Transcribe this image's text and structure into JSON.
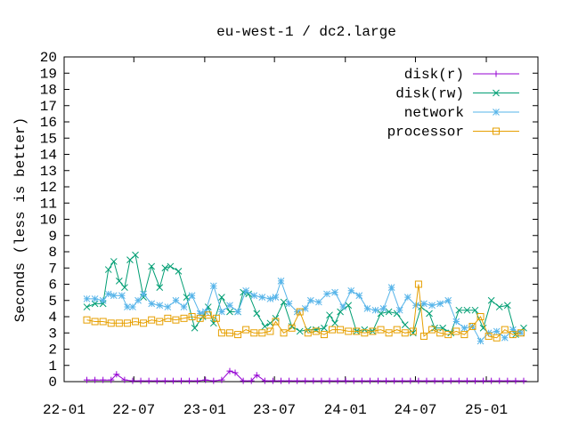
{
  "chart_data": {
    "type": "line",
    "title": "eu-west-1 / dc2.large",
    "ylabel": "Seconds (less is better)",
    "xlabel": "",
    "x_axis_type": "date",
    "ylim": [
      0,
      20
    ],
    "y_ticks": [
      "0",
      "1",
      "2",
      "3",
      "4",
      "5",
      "6",
      "7",
      "8",
      "9",
      "10",
      "11",
      "12",
      "13",
      "14",
      "15",
      "16",
      "17",
      "18",
      "19",
      "20"
    ],
    "x_ticks": [
      {
        "label": "22-01",
        "date": "2022-01-01"
      },
      {
        "label": "22-07",
        "date": "2022-07-01"
      },
      {
        "label": "23-01",
        "date": "2023-01-01"
      },
      {
        "label": "23-07",
        "date": "2023-07-01"
      },
      {
        "label": "24-01",
        "date": "2024-01-01"
      },
      {
        "label": "24-07",
        "date": "2024-07-01"
      },
      {
        "label": "25-01",
        "date": "2025-01-01"
      }
    ],
    "xlim": [
      "2022-01-01",
      "2025-05-15"
    ],
    "grid": false,
    "legend_position": "top-right",
    "series": [
      {
        "name": "disk(r)",
        "color": "#9400d3",
        "marker": "plus",
        "points": [
          [
            "2022-03-01",
            0.1
          ],
          [
            "2022-03-22",
            0.1
          ],
          [
            "2022-04-12",
            0.1
          ],
          [
            "2022-05-03",
            0.1
          ],
          [
            "2022-05-17",
            0.45
          ],
          [
            "2022-06-07",
            0.1
          ],
          [
            "2022-06-28",
            0.05
          ],
          [
            "2022-07-19",
            0.05
          ],
          [
            "2022-08-09",
            0.05
          ],
          [
            "2022-08-30",
            0.05
          ],
          [
            "2022-09-20",
            0.05
          ],
          [
            "2022-10-11",
            0.05
          ],
          [
            "2022-11-01",
            0.05
          ],
          [
            "2022-11-22",
            0.05
          ],
          [
            "2022-12-13",
            0.05
          ],
          [
            "2023-01-03",
            0.1
          ],
          [
            "2023-01-24",
            0.05
          ],
          [
            "2023-02-14",
            0.1
          ],
          [
            "2023-03-07",
            0.65
          ],
          [
            "2023-03-21",
            0.55
          ],
          [
            "2023-04-11",
            0.05
          ],
          [
            "2023-05-02",
            0.05
          ],
          [
            "2023-05-16",
            0.4
          ],
          [
            "2023-06-06",
            0.05
          ],
          [
            "2023-06-27",
            0.05
          ],
          [
            "2023-07-18",
            0.05
          ],
          [
            "2023-08-08",
            0.05
          ],
          [
            "2023-08-29",
            0.05
          ],
          [
            "2023-09-19",
            0.05
          ],
          [
            "2023-10-10",
            0.05
          ],
          [
            "2023-10-31",
            0.05
          ],
          [
            "2023-11-21",
            0.05
          ],
          [
            "2023-12-12",
            0.05
          ],
          [
            "2024-01-02",
            0.05
          ],
          [
            "2024-01-23",
            0.05
          ],
          [
            "2024-02-13",
            0.05
          ],
          [
            "2024-03-05",
            0.05
          ],
          [
            "2024-03-26",
            0.05
          ],
          [
            "2024-04-16",
            0.05
          ],
          [
            "2024-05-07",
            0.05
          ],
          [
            "2024-05-28",
            0.05
          ],
          [
            "2024-06-18",
            0.05
          ],
          [
            "2024-07-09",
            0.05
          ],
          [
            "2024-07-30",
            0.05
          ],
          [
            "2024-08-20",
            0.05
          ],
          [
            "2024-09-10",
            0.05
          ],
          [
            "2024-10-01",
            0.05
          ],
          [
            "2024-10-22",
            0.05
          ],
          [
            "2024-11-12",
            0.05
          ],
          [
            "2024-12-03",
            0.05
          ],
          [
            "2024-12-24",
            0.05
          ],
          [
            "2025-01-14",
            0.05
          ],
          [
            "2025-02-04",
            0.05
          ],
          [
            "2025-02-25",
            0.05
          ],
          [
            "2025-03-18",
            0.05
          ],
          [
            "2025-04-08",
            0.05
          ]
        ]
      },
      {
        "name": "disk(rw)",
        "color": "#009e73",
        "marker": "cross",
        "points": [
          [
            "2022-03-01",
            4.6
          ],
          [
            "2022-03-22",
            4.8
          ],
          [
            "2022-04-12",
            4.8
          ],
          [
            "2022-04-26",
            6.9
          ],
          [
            "2022-05-10",
            7.4
          ],
          [
            "2022-05-24",
            6.2
          ],
          [
            "2022-06-07",
            5.8
          ],
          [
            "2022-06-21",
            7.5
          ],
          [
            "2022-07-05",
            7.8
          ],
          [
            "2022-07-26",
            5.2
          ],
          [
            "2022-08-16",
            7.1
          ],
          [
            "2022-09-06",
            5.8
          ],
          [
            "2022-09-20",
            7.0
          ],
          [
            "2022-10-04",
            7.1
          ],
          [
            "2022-10-25",
            6.8
          ],
          [
            "2022-11-15",
            5.2
          ],
          [
            "2022-12-06",
            3.3
          ],
          [
            "2022-12-27",
            4.0
          ],
          [
            "2023-01-10",
            4.6
          ],
          [
            "2023-01-24",
            3.6
          ],
          [
            "2023-02-14",
            5.2
          ],
          [
            "2023-03-07",
            4.3
          ],
          [
            "2023-03-28",
            4.3
          ],
          [
            "2023-04-11",
            5.5
          ],
          [
            "2023-04-25",
            5.4
          ],
          [
            "2023-05-16",
            4.2
          ],
          [
            "2023-06-06",
            3.4
          ],
          [
            "2023-06-20",
            3.6
          ],
          [
            "2023-07-04",
            3.9
          ],
          [
            "2023-07-25",
            4.9
          ],
          [
            "2023-08-15",
            3.4
          ],
          [
            "2023-09-05",
            3.1
          ],
          [
            "2023-09-26",
            3.2
          ],
          [
            "2023-10-17",
            3.2
          ],
          [
            "2023-11-07",
            3.3
          ],
          [
            "2023-11-21",
            4.1
          ],
          [
            "2023-12-05",
            3.6
          ],
          [
            "2023-12-19",
            4.3
          ],
          [
            "2024-01-09",
            4.7
          ],
          [
            "2024-01-30",
            3.1
          ],
          [
            "2024-02-20",
            3.2
          ],
          [
            "2024-03-12",
            3.1
          ],
          [
            "2024-04-02",
            4.2
          ],
          [
            "2024-04-23",
            4.3
          ],
          [
            "2024-05-14",
            4.2
          ],
          [
            "2024-06-04",
            3.5
          ],
          [
            "2024-06-25",
            3.0
          ],
          [
            "2024-07-16",
            4.6
          ],
          [
            "2024-08-06",
            4.2
          ],
          [
            "2024-08-20",
            3.3
          ],
          [
            "2024-09-10",
            3.3
          ],
          [
            "2024-10-01",
            3.0
          ],
          [
            "2024-10-22",
            4.4
          ],
          [
            "2024-11-12",
            4.4
          ],
          [
            "2024-12-03",
            4.4
          ],
          [
            "2024-12-24",
            3.3
          ],
          [
            "2025-01-14",
            5.0
          ],
          [
            "2025-02-04",
            4.6
          ],
          [
            "2025-02-25",
            4.7
          ],
          [
            "2025-03-18",
            2.9
          ],
          [
            "2025-04-08",
            3.3
          ]
        ]
      },
      {
        "name": "network",
        "color": "#56b4e9",
        "marker": "star",
        "points": [
          [
            "2022-03-01",
            5.1
          ],
          [
            "2022-03-22",
            5.1
          ],
          [
            "2022-04-12",
            5.0
          ],
          [
            "2022-04-26",
            5.4
          ],
          [
            "2022-05-10",
            5.3
          ],
          [
            "2022-05-31",
            5.3
          ],
          [
            "2022-06-14",
            4.6
          ],
          [
            "2022-06-28",
            4.6
          ],
          [
            "2022-07-12",
            5.0
          ],
          [
            "2022-07-26",
            5.4
          ],
          [
            "2022-08-16",
            4.8
          ],
          [
            "2022-09-06",
            4.7
          ],
          [
            "2022-09-27",
            4.6
          ],
          [
            "2022-10-18",
            5.0
          ],
          [
            "2022-11-08",
            4.6
          ],
          [
            "2022-11-29",
            5.3
          ],
          [
            "2022-12-20",
            4.2
          ],
          [
            "2023-01-03",
            4.3
          ],
          [
            "2023-01-24",
            5.9
          ],
          [
            "2023-02-14",
            4.3
          ],
          [
            "2023-03-07",
            4.7
          ],
          [
            "2023-03-28",
            4.3
          ],
          [
            "2023-04-18",
            5.6
          ],
          [
            "2023-05-09",
            5.3
          ],
          [
            "2023-05-30",
            5.2
          ],
          [
            "2023-06-20",
            5.1
          ],
          [
            "2023-07-04",
            5.2
          ],
          [
            "2023-07-18",
            6.2
          ],
          [
            "2023-08-08",
            4.8
          ],
          [
            "2023-08-29",
            4.3
          ],
          [
            "2023-09-19",
            4.5
          ],
          [
            "2023-10-03",
            5.0
          ],
          [
            "2023-10-24",
            4.9
          ],
          [
            "2023-11-14",
            5.4
          ],
          [
            "2023-12-05",
            5.5
          ],
          [
            "2023-12-26",
            4.6
          ],
          [
            "2024-01-16",
            5.6
          ],
          [
            "2024-02-06",
            5.3
          ],
          [
            "2024-02-27",
            4.5
          ],
          [
            "2024-03-19",
            4.4
          ],
          [
            "2024-04-09",
            4.5
          ],
          [
            "2024-04-30",
            5.8
          ],
          [
            "2024-05-21",
            4.4
          ],
          [
            "2024-06-11",
            5.2
          ],
          [
            "2024-07-02",
            4.7
          ],
          [
            "2024-07-23",
            4.8
          ],
          [
            "2024-08-13",
            4.7
          ],
          [
            "2024-09-03",
            4.8
          ],
          [
            "2024-09-24",
            5.0
          ],
          [
            "2024-10-15",
            3.7
          ],
          [
            "2024-11-05",
            3.3
          ],
          [
            "2024-11-26",
            3.4
          ],
          [
            "2024-12-17",
            2.5
          ],
          [
            "2025-01-07",
            3.0
          ],
          [
            "2025-01-28",
            3.1
          ],
          [
            "2025-02-18",
            2.7
          ],
          [
            "2025-03-11",
            3.2
          ],
          [
            "2025-04-01",
            3.0
          ]
        ]
      },
      {
        "name": "processor",
        "color": "#e69f00",
        "marker": "square",
        "points": [
          [
            "2022-03-01",
            3.8
          ],
          [
            "2022-03-22",
            3.7
          ],
          [
            "2022-04-12",
            3.7
          ],
          [
            "2022-05-03",
            3.6
          ],
          [
            "2022-05-24",
            3.6
          ],
          [
            "2022-06-14",
            3.6
          ],
          [
            "2022-07-05",
            3.7
          ],
          [
            "2022-07-26",
            3.6
          ],
          [
            "2022-08-16",
            3.8
          ],
          [
            "2022-09-06",
            3.7
          ],
          [
            "2022-09-27",
            3.9
          ],
          [
            "2022-10-18",
            3.8
          ],
          [
            "2022-11-08",
            3.9
          ],
          [
            "2022-11-29",
            4.0
          ],
          [
            "2022-12-20",
            3.9
          ],
          [
            "2023-01-10",
            4.1
          ],
          [
            "2023-01-31",
            3.9
          ],
          [
            "2023-02-14",
            3.0
          ],
          [
            "2023-03-07",
            3.0
          ],
          [
            "2023-03-28",
            2.9
          ],
          [
            "2023-04-18",
            3.2
          ],
          [
            "2023-05-09",
            3.0
          ],
          [
            "2023-05-30",
            3.0
          ],
          [
            "2023-06-20",
            3.1
          ],
          [
            "2023-07-04",
            3.7
          ],
          [
            "2023-07-25",
            3.0
          ],
          [
            "2023-08-15",
            3.3
          ],
          [
            "2023-09-05",
            4.3
          ],
          [
            "2023-09-26",
            3.0
          ],
          [
            "2023-10-17",
            3.1
          ],
          [
            "2023-11-07",
            2.9
          ],
          [
            "2023-11-28",
            3.2
          ],
          [
            "2023-12-19",
            3.2
          ],
          [
            "2024-01-09",
            3.1
          ],
          [
            "2024-01-30",
            3.1
          ],
          [
            "2024-02-20",
            3.0
          ],
          [
            "2024-03-12",
            3.1
          ],
          [
            "2024-04-02",
            3.2
          ],
          [
            "2024-04-23",
            3.0
          ],
          [
            "2024-05-14",
            3.2
          ],
          [
            "2024-06-04",
            3.0
          ],
          [
            "2024-06-25",
            3.1
          ],
          [
            "2024-07-09",
            6.0
          ],
          [
            "2024-07-23",
            2.8
          ],
          [
            "2024-08-13",
            3.2
          ],
          [
            "2024-09-03",
            3.0
          ],
          [
            "2024-09-24",
            2.9
          ],
          [
            "2024-10-15",
            3.1
          ],
          [
            "2024-11-05",
            2.9
          ],
          [
            "2024-11-26",
            3.4
          ],
          [
            "2024-12-17",
            4.0
          ],
          [
            "2025-01-07",
            2.8
          ],
          [
            "2025-01-28",
            2.7
          ],
          [
            "2025-02-18",
            3.2
          ],
          [
            "2025-03-11",
            2.9
          ],
          [
            "2025-04-01",
            3.0
          ]
        ]
      }
    ]
  }
}
